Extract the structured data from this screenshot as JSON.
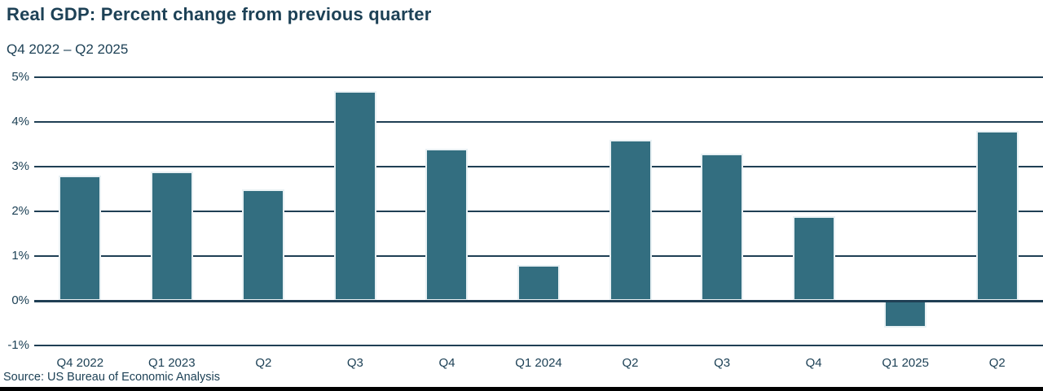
{
  "header": {
    "title": "Real GDP: Percent change from previous quarter",
    "subtitle": "Q4 2022 – Q2 2025"
  },
  "chart_data": {
    "type": "bar",
    "title": "Real GDP: Percent change from previous quarter",
    "subtitle": "Q4 2022 – Q2 2025",
    "categories": [
      "Q4 2022",
      "Q1 2023",
      "Q2",
      "Q3",
      "Q4",
      "Q1 2024",
      "Q2",
      "Q3",
      "Q4",
      "Q1 2025",
      "Q2"
    ],
    "values": [
      2.8,
      2.9,
      2.5,
      4.7,
      3.4,
      0.8,
      3.6,
      3.3,
      1.9,
      -0.6,
      3.8
    ],
    "xlabel": "",
    "ylabel": "",
    "ylim": [
      -1,
      5
    ],
    "ytick_values": [
      5,
      4,
      3,
      2,
      1,
      0,
      -1
    ],
    "ytick_labels": [
      "5%",
      "4%",
      "3%",
      "2%",
      "1%",
      "0%",
      "-1%"
    ],
    "grid": true,
    "legend": "none",
    "bar_color": "#336e80",
    "bar_border_color": "#e9f1f4",
    "gridline_color": "#1f3f54",
    "text_color": "#1d4156"
  },
  "footer": {
    "source": "Source: US Bureau of Economic Analysis"
  }
}
